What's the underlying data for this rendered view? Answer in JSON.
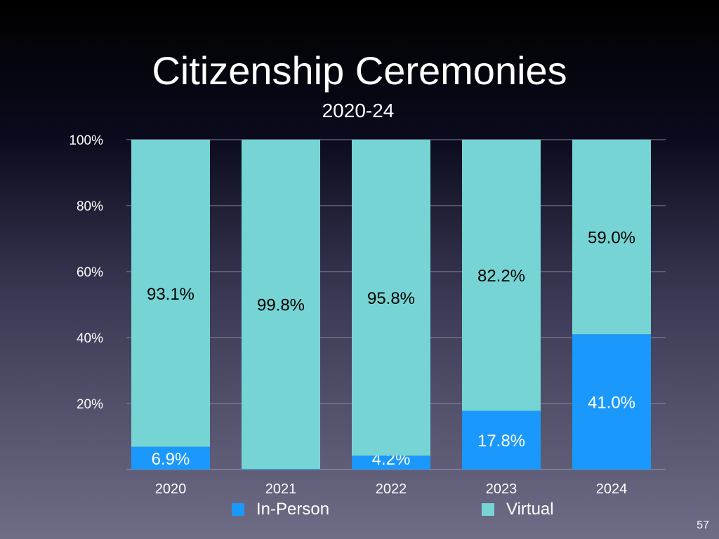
{
  "slide": {
    "title": "Citizenship Ceremonies",
    "subtitle": "2020-24",
    "page_number": "57"
  },
  "chart_data": {
    "type": "bar",
    "stacked": true,
    "title": "Citizenship Ceremonies",
    "subtitle": "2020-24",
    "xlabel": "",
    "ylabel": "",
    "ylim": [
      0,
      100
    ],
    "yticks": [
      "20%",
      "40%",
      "60%",
      "80%",
      "100%"
    ],
    "ytick_values": [
      20,
      40,
      60,
      80,
      100
    ],
    "grid": true,
    "legend_position": "bottom",
    "categories": [
      "2020",
      "2021",
      "2022",
      "2023",
      "2024"
    ],
    "series": [
      {
        "name": "In-Person",
        "color": "#1a98fc",
        "values": [
          6.9,
          0.2,
          4.2,
          17.8,
          41.0
        ],
        "labels": [
          "6.9%",
          "0.2%",
          "4.2%",
          "17.8%",
          "41.0%"
        ]
      },
      {
        "name": "Virtual",
        "color": "#76d5d4",
        "values": [
          93.1,
          99.8,
          95.8,
          82.2,
          59.0
        ],
        "labels": [
          "93.1%",
          "99.8%",
          "95.8%",
          "82.2%",
          "59.0%"
        ]
      }
    ]
  }
}
